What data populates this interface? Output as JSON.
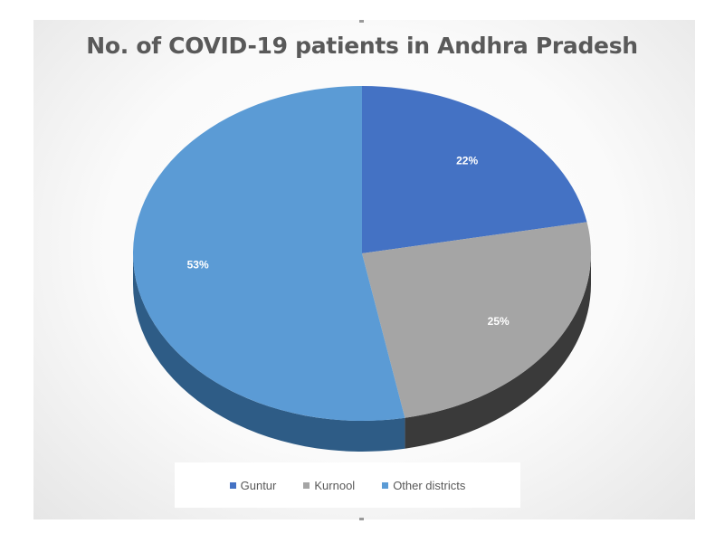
{
  "chart_data": {
    "type": "pie",
    "title": "No. of COVID-19 patients in Andhra Pradesh",
    "slices": [
      {
        "label": "Guntur",
        "value": 22,
        "display": "22%",
        "color": "#4472c4"
      },
      {
        "label": "Kurnool",
        "value": 25,
        "display": "25%",
        "color": "#a5a5a5"
      },
      {
        "label": "Other districts",
        "value": 53,
        "display": "53%",
        "color": "#5b9bd5"
      }
    ],
    "legend_position": "bottom",
    "style": "3d"
  }
}
